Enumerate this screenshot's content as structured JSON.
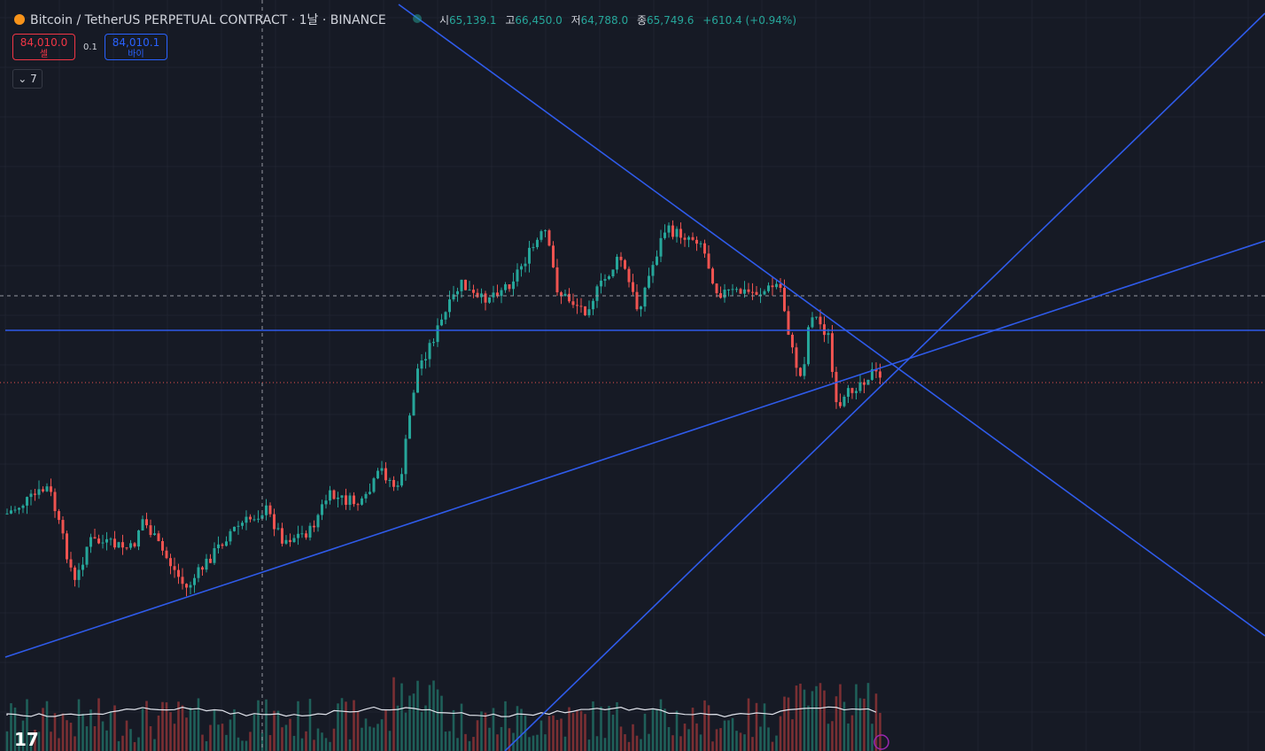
{
  "header": {
    "symbol": "Bitcoin / TetherUS PERPETUAL CONTRACT · 1날 · BINANCE",
    "ohlc": [
      {
        "label": "시",
        "value": "65,139.1"
      },
      {
        "label": "고",
        "value": "66,450.0"
      },
      {
        "label": "저",
        "value": "64,788.0"
      },
      {
        "label": "종",
        "value": "65,749.6"
      }
    ],
    "change": "+610.4 (+0.94%)"
  },
  "trade": {
    "sell_price": "84,010.0",
    "sell_label": "셀",
    "spread": "0.1",
    "buy_price": "84,010.1",
    "buy_label": "바이"
  },
  "indicators_toggle": "7"
}
